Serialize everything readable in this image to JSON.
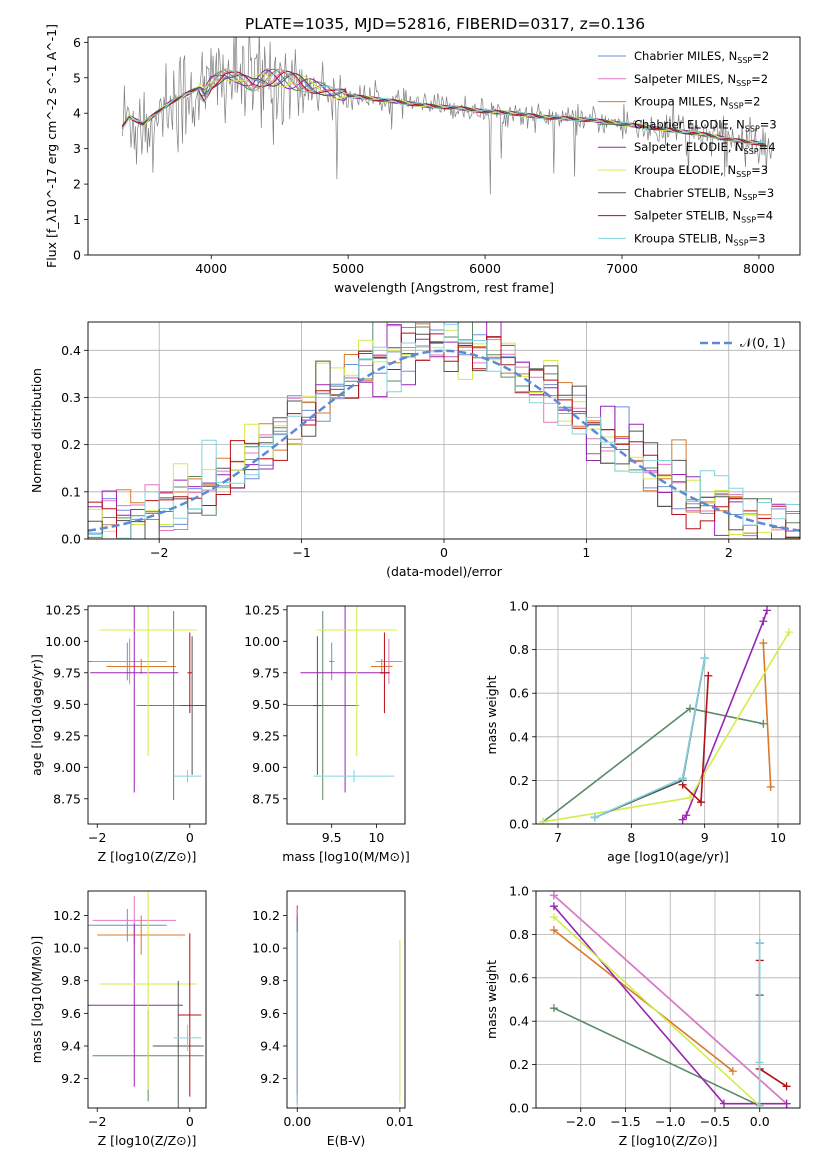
{
  "title": "PLATE=1035, MJD=52816, FIBERID=0317, z=0.136",
  "colors": {
    "Chabrier MILES": "#6f8fd8",
    "Salpeter MILES": "#e377c2",
    "Kroupa MILES": "#d9782a",
    "Chabrier ELODIE": "#5a8a66",
    "Salpeter ELODIE": "#9a24b4",
    "Kroupa ELODIE": "#d4ec4a",
    "Chabrier STELIB": "#555555",
    "Salpeter STELIB": "#b51016",
    "Kroupa STELIB": "#80d4de"
  },
  "legend": [
    {
      "key": "Chabrier MILES",
      "label": "Chabrier MILES, N",
      "nssp": "2"
    },
    {
      "key": "Salpeter MILES",
      "label": "Salpeter MILES, N",
      "nssp": "2"
    },
    {
      "key": "Kroupa MILES",
      "label": "Kroupa MILES, N",
      "nssp": "2"
    },
    {
      "key": "Chabrier ELODIE",
      "label": "Chabrier ELODIE, N",
      "nssp": "3"
    },
    {
      "key": "Salpeter ELODIE",
      "label": "Salpeter ELODIE, N",
      "nssp": "4"
    },
    {
      "key": "Kroupa ELODIE",
      "label": "Kroupa ELODIE, N",
      "nssp": "3"
    },
    {
      "key": "Chabrier STELIB",
      "label": "Chabrier STELIB, N",
      "nssp": "3"
    },
    {
      "key": "Salpeter STELIB",
      "label": "Salpeter STELIB, N",
      "nssp": "4"
    },
    {
      "key": "Kroupa STELIB",
      "label": "Kroupa STELIB, N",
      "nssp": "3"
    }
  ],
  "chart_data": [
    {
      "id": "spectrum",
      "type": "line",
      "xlabel": "wavelength [Angstrom, rest frame]",
      "ylabel": "Flux [f_λ10^-17 erg cm^-2 s^-1 A^-1]",
      "xlim": [
        3100,
        8300
      ],
      "ylim": [
        0,
        6.15
      ],
      "xticks": [
        4000,
        5000,
        6000,
        7000,
        8000
      ],
      "yticks": [
        0,
        1,
        2,
        3,
        4,
        5,
        6
      ],
      "data": {
        "color": "#808080",
        "x_range": [
          3350,
          8100
        ],
        "sample_step": 8
      },
      "model_continuum": [
        [
          3350,
          3.6
        ],
        [
          3400,
          3.9
        ],
        [
          3500,
          3.7
        ],
        [
          3600,
          4.0
        ],
        [
          3700,
          4.3
        ],
        [
          3800,
          4.5
        ],
        [
          3900,
          4.7
        ],
        [
          3950,
          4.5
        ],
        [
          4000,
          4.85
        ],
        [
          4100,
          5.1
        ],
        [
          4200,
          5.0
        ],
        [
          4300,
          4.8
        ],
        [
          4400,
          5.0
        ],
        [
          4500,
          5.0
        ],
        [
          4600,
          4.9
        ],
        [
          4700,
          4.8
        ],
        [
          4800,
          4.7
        ],
        [
          4900,
          4.55
        ],
        [
          5000,
          4.5
        ],
        [
          5200,
          4.4
        ],
        [
          5400,
          4.3
        ],
        [
          5600,
          4.2
        ],
        [
          5800,
          4.15
        ],
        [
          6000,
          4.05
        ],
        [
          6200,
          4.0
        ],
        [
          6400,
          3.9
        ],
        [
          6600,
          3.85
        ],
        [
          6800,
          3.8
        ],
        [
          7000,
          3.7
        ],
        [
          7200,
          3.6
        ],
        [
          7400,
          3.5
        ],
        [
          7600,
          3.4
        ],
        [
          7800,
          3.25
        ],
        [
          8000,
          3.15
        ],
        [
          8050,
          3.1
        ]
      ]
    },
    {
      "id": "residuals",
      "type": "histogram",
      "xlabel": "(data-model)/error",
      "ylabel": "Normed distribution",
      "xlim": [
        -2.5,
        2.5
      ],
      "ylim": [
        0,
        0.46
      ],
      "xticks": [
        -2,
        -1,
        0,
        1,
        2
      ],
      "yticks": [
        0.0,
        0.1,
        0.2,
        0.3,
        0.4
      ],
      "grid": true,
      "bin_width": 0.1,
      "reference_label": "𝒩(0, 1)",
      "reference_color": "#5b8bd6"
    },
    {
      "id": "age-vs-Z",
      "type": "scatter",
      "xlabel": "Z [log10(Z/Z⊙)]",
      "ylabel": "age [log10(age/yr)]",
      "xlim": [
        -2.2,
        0.35
      ],
      "ylim": [
        8.55,
        10.28
      ],
      "xticks": [
        -2,
        0
      ],
      "yticks": [
        8.75,
        9.0,
        9.25,
        9.5,
        9.75,
        10.0,
        10.25
      ],
      "points": [
        {
          "s": "Chabrier MILES",
          "x": -1.35,
          "y": 9.84,
          "xe": 0.85,
          "ye": 0.15
        },
        {
          "s": "Salpeter MILES",
          "x": -1.3,
          "y": 9.84,
          "xe": 0.8,
          "ye": 0.18
        },
        {
          "s": "Kroupa MILES",
          "x": -1.05,
          "y": 9.8,
          "xe": 0.75,
          "ye": 0.06
        },
        {
          "s": "Chabrier ELODIE",
          "x": -0.35,
          "y": 9.49,
          "xe": 0.8,
          "ye": 0.75
        },
        {
          "s": "Salpeter ELODIE",
          "x": -1.2,
          "y": 9.75,
          "xe": 0.95,
          "ye": 0.95
        },
        {
          "s": "Kroupa ELODIE",
          "x": -0.9,
          "y": 10.09,
          "xe": 1.05,
          "ye": 1.0
        },
        {
          "s": "Chabrier STELIB",
          "x": 0.05,
          "y": 9.49,
          "xe": 0.25,
          "ye": 0.55
        },
        {
          "s": "Salpeter STELIB",
          "x": 0.0,
          "y": 9.75,
          "xe": 0.05,
          "ye": 0.32
        },
        {
          "s": "Kroupa STELIB",
          "x": -0.05,
          "y": 8.93,
          "xe": 0.3,
          "ye": 0.05
        }
      ]
    },
    {
      "id": "age-vs-mass",
      "type": "scatter",
      "xlabel": "mass [log10(M/M⊙)]",
      "ylabel": "",
      "xlim": [
        9.0,
        10.32
      ],
      "ylim": [
        8.55,
        10.28
      ],
      "xticks": [
        9.5,
        10.0
      ],
      "yticks": [
        8.75,
        9.0,
        9.25,
        9.5,
        9.75,
        10.0,
        10.25
      ],
      "points": [
        {
          "s": "Chabrier MILES",
          "x": 9.5,
          "y": 9.84,
          "xe": 0.03,
          "ye": 0.15
        },
        {
          "s": "Salpeter MILES",
          "x": 10.14,
          "y": 9.84,
          "xe": 0.15,
          "ye": 0.18
        },
        {
          "s": "Kroupa MILES",
          "x": 10.06,
          "y": 9.8,
          "xe": 0.12,
          "ye": 0.06
        },
        {
          "s": "Chabrier ELODIE",
          "x": 9.4,
          "y": 9.49,
          "xe": 0.4,
          "ye": 0.75
        },
        {
          "s": "Salpeter ELODIE",
          "x": 9.65,
          "y": 9.75,
          "xe": 0.5,
          "ye": 0.95
        },
        {
          "s": "Kroupa ELODIE",
          "x": 9.78,
          "y": 10.09,
          "xe": 0.45,
          "ye": 1.0
        },
        {
          "s": "Chabrier STELIB",
          "x": 9.34,
          "y": 9.49,
          "xe": 0.05,
          "ye": 0.55
        },
        {
          "s": "Salpeter STELIB",
          "x": 10.09,
          "y": 9.75,
          "xe": 0.05,
          "ye": 0.32
        },
        {
          "s": "Kroupa STELIB",
          "x": 9.75,
          "y": 8.93,
          "xe": 0.45,
          "ye": 0.05
        }
      ]
    },
    {
      "id": "mass-weight-vs-age",
      "type": "line",
      "xlabel": "age  [log10(age/yr)]",
      "ylabel": "mass weight",
      "xlim": [
        6.7,
        10.3
      ],
      "ylim": [
        0,
        1.0
      ],
      "xticks": [
        7,
        8,
        9,
        10
      ],
      "yticks": [
        0.0,
        0.2,
        0.4,
        0.6,
        0.8,
        1.0
      ],
      "grid": true,
      "series": [
        {
          "s": "Chabrier MILES",
          "x": [
            8.7,
            9.0
          ],
          "y": [
            0.21,
            0.76
          ]
        },
        {
          "s": "Salpeter MILES",
          "x": [
            8.7,
            9.0
          ],
          "y": [
            0.21,
            0.76
          ]
        },
        {
          "s": "Kroupa MILES",
          "x": [
            9.8,
            9.9
          ],
          "y": [
            0.83,
            0.17
          ]
        },
        {
          "s": "Chabrier ELODIE",
          "x": [
            6.8,
            8.8,
            9.8
          ],
          "y": [
            0.01,
            0.53,
            0.46
          ]
        },
        {
          "s": "Salpeter ELODIE",
          "x": [
            8.7,
            8.75,
            9.8,
            9.85
          ],
          "y": [
            0.02,
            0.04,
            0.93,
            0.98
          ]
        },
        {
          "s": "Kroupa ELODIE",
          "x": [
            6.8,
            8.8,
            10.15
          ],
          "y": [
            0.01,
            0.12,
            0.88
          ]
        },
        {
          "s": "Chabrier STELIB",
          "x": [
            7.5,
            8.7,
            9.0
          ],
          "y": [
            0.03,
            0.2,
            0.76
          ]
        },
        {
          "s": "Salpeter STELIB",
          "x": [
            8.7,
            8.95,
            9.05
          ],
          "y": [
            0.18,
            0.1,
            0.68
          ]
        },
        {
          "s": "Kroupa STELIB",
          "x": [
            7.5,
            8.7,
            9.0
          ],
          "y": [
            0.03,
            0.21,
            0.76
          ]
        }
      ]
    },
    {
      "id": "mass-vs-Z",
      "type": "scatter",
      "xlabel": "Z [log10(Z/Z⊙)]",
      "ylabel": "mass [log10(M/M⊙)]",
      "xlim": [
        -2.2,
        0.35
      ],
      "ylim": [
        9.02,
        10.35
      ],
      "xticks": [
        -2,
        0
      ],
      "yticks": [
        9.2,
        9.4,
        9.6,
        9.8,
        10.0,
        10.2
      ],
      "points": [
        {
          "s": "Chabrier MILES",
          "x": -1.35,
          "y": 10.14,
          "xe": 0.85,
          "ye": 0.1
        },
        {
          "s": "Salpeter MILES",
          "x": -1.2,
          "y": 10.17,
          "xe": 0.9,
          "ye": 0.15
        },
        {
          "s": "Kroupa MILES",
          "x": -1.05,
          "y": 10.08,
          "xe": 0.95,
          "ye": 0.12
        },
        {
          "s": "Chabrier ELODIE",
          "x": -0.9,
          "y": 9.34,
          "xe": 1.2,
          "ye": 0.28
        },
        {
          "s": "Salpeter ELODIE",
          "x": -1.2,
          "y": 9.65,
          "xe": 1.05,
          "ye": 0.5
        },
        {
          "s": "Kroupa ELODIE",
          "x": -0.9,
          "y": 9.78,
          "xe": 1.05,
          "ye": 0.65
        },
        {
          "s": "Chabrier STELIB",
          "x": -0.25,
          "y": 9.4,
          "xe": 0.55,
          "ye": 0.4
        },
        {
          "s": "Salpeter STELIB",
          "x": 0.0,
          "y": 9.59,
          "xe": 0.25,
          "ye": 0.5
        },
        {
          "s": "Kroupa STELIB",
          "x": -0.05,
          "y": 9.45,
          "xe": 0.3,
          "ye": 0.08
        }
      ]
    },
    {
      "id": "mass-vs-ebv",
      "type": "scatter",
      "xlabel": "E(B-V)",
      "ylabel": "",
      "xlim": [
        -0.001,
        0.0105
      ],
      "ylim": [
        9.02,
        10.35
      ],
      "xticks": [
        0.0,
        0.01
      ],
      "xticklabels": [
        "0.00",
        "0.01"
      ],
      "yticks": [
        9.2,
        9.4,
        9.6,
        9.8,
        10.0,
        10.2
      ],
      "points": [
        {
          "s": "Salpeter STELIB",
          "x": 0.0,
          "y": 10.21,
          "xe": 0,
          "ye": 0.05
        },
        {
          "s": "Salpeter MILES",
          "x": 0.0,
          "y": 10.17,
          "xe": 0,
          "ye": 0.08
        },
        {
          "s": "Chabrier ELODIE",
          "x": 0.0,
          "y": 9.6,
          "xe": 0,
          "ye": 0.55
        },
        {
          "s": "Salpeter ELODIE",
          "x": 0.0,
          "y": 9.65,
          "xe": 0,
          "ye": 0.55
        },
        {
          "s": "Chabrier MILES",
          "x": 0.0,
          "y": 9.75,
          "xe": 0,
          "ye": 0.45
        },
        {
          "s": "Kroupa STELIB",
          "x": 0.0,
          "y": 9.5,
          "xe": 0,
          "ye": 0.6
        },
        {
          "s": "Kroupa ELODIE",
          "x": 0.01,
          "y": 9.55,
          "xe": 0,
          "ye": 0.5
        }
      ]
    },
    {
      "id": "mass-weight-vs-Z",
      "type": "line",
      "xlabel": "Z [log10(Z/Z⊙)]",
      "ylabel": "mass weight",
      "xlim": [
        -2.5,
        0.45
      ],
      "ylim": [
        0,
        1.0
      ],
      "xticks": [
        -2.0,
        -1.5,
        -1.0,
        -0.5,
        0.0
      ],
      "xticklabels": [
        "−2.0",
        "−1.5",
        "−1.0",
        "−0.5",
        "0.0"
      ],
      "yticks": [
        0.0,
        0.2,
        0.4,
        0.6,
        0.8,
        1.0
      ],
      "grid": true,
      "series": [
        {
          "s": "Chabrier MILES",
          "x": [
            -2.3,
            0.3
          ],
          "y": [
            0.98,
            0.02
          ]
        },
        {
          "s": "Salpeter MILES",
          "x": [
            -2.3,
            0.3
          ],
          "y": [
            0.98,
            0.02
          ]
        },
        {
          "s": "Kroupa MILES",
          "x": [
            -2.3,
            -0.3
          ],
          "y": [
            0.82,
            0.17
          ]
        },
        {
          "s": "Chabrier ELODIE",
          "x": [
            -2.3,
            0.0
          ],
          "y": [
            0.46,
            0.01
          ]
        },
        {
          "s": "Salpeter ELODIE",
          "x": [
            -2.3,
            -0.4,
            0.3
          ],
          "y": [
            0.93,
            0.02,
            0.02
          ]
        },
        {
          "s": "Kroupa ELODIE",
          "x": [
            -2.3,
            0.0
          ],
          "y": [
            0.88,
            0.01
          ]
        },
        {
          "s": "Chabrier STELIB",
          "x": [
            0.0,
            0.0,
            0.0
          ],
          "y": [
            0.01,
            0.52,
            0.76
          ]
        },
        {
          "s": "Salpeter STELIB",
          "x": [
            0.0,
            0.0,
            0.3
          ],
          "y": [
            0.68,
            0.18,
            0.1
          ]
        },
        {
          "s": "Kroupa STELIB",
          "x": [
            0.0,
            0.0,
            0.0
          ],
          "y": [
            0.01,
            0.21,
            0.76
          ]
        }
      ]
    }
  ]
}
